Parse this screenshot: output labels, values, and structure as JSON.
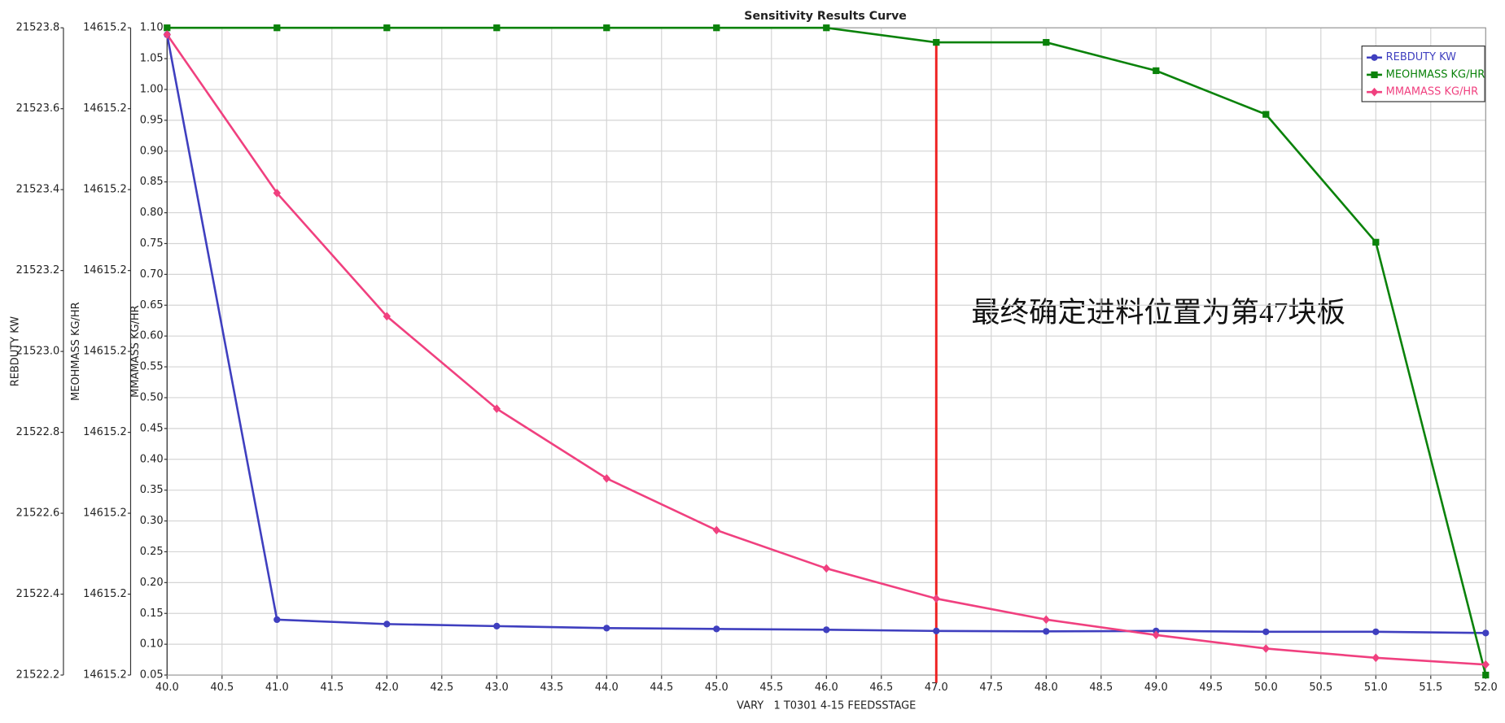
{
  "chart_data": {
    "type": "line",
    "title": "Sensitivity Results Curve",
    "xlabel": "VARY   1 T0301 4-15 FEEDSSTAGE",
    "x": [
      40,
      41,
      42,
      43,
      44,
      45,
      46,
      47,
      48,
      49,
      50,
      51,
      52
    ],
    "xlim": [
      40,
      52
    ],
    "xticks": [
      {
        "value": 40,
        "label": "40.0"
      },
      40.5,
      {
        "value": 41,
        "label": "41.0"
      },
      41.5,
      {
        "value": 42,
        "label": "42.0"
      },
      42.5,
      {
        "value": 43,
        "label": "43.0"
      },
      43.5,
      {
        "value": 44,
        "label": "44.0"
      },
      44.5,
      {
        "value": 45,
        "label": "45.0"
      },
      45.5,
      {
        "value": 46,
        "label": "46.0"
      },
      46.5,
      {
        "value": 47,
        "label": "47.0"
      },
      47.5,
      {
        "value": 48,
        "label": "48.0"
      },
      48.5,
      {
        "value": 49,
        "label": "49.0"
      },
      49.5,
      {
        "value": 50,
        "label": "50.0"
      },
      50.5,
      {
        "value": 51,
        "label": "51.0"
      },
      51.5,
      {
        "value": 52,
        "label": "52.0"
      }
    ],
    "ylabel": "REBDUTY KW",
    "ylim": [
      21522.2,
      21523.8
    ],
    "yticks": [
      21522.2,
      21522.4,
      21522.6,
      21522.8,
      {
        "value": 21523,
        "label": "21523.0"
      },
      21523.2,
      21523.4,
      21523.6,
      21523.8
    ],
    "y2label": "MEOHMASS KG/HR",
    "y2lim": [
      14615.16,
      14615.24
    ],
    "y2ticks": [
      {
        "value": 14615.16,
        "label": "14615.2"
      },
      {
        "value": 14615.17,
        "label": "14615.2"
      },
      {
        "value": 14615.18,
        "label": "14615.2"
      },
      {
        "value": 14615.19,
        "label": "14615.2"
      },
      14615.2,
      {
        "value": 14615.21,
        "label": "14615.2"
      },
      {
        "value": 14615.22,
        "label": "14615.2"
      },
      {
        "value": 14615.23,
        "label": "14615.2"
      },
      {
        "value": 14615.24,
        "label": "14615.2"
      }
    ],
    "y3label": "MMAMASS KG/HR",
    "y3lim": [
      0.05,
      1.1
    ],
    "y3ticks": [
      0.05,
      {
        "value": 0.1,
        "label": "0.10"
      },
      0.15,
      {
        "value": 0.2,
        "label": "0.20"
      },
      0.25,
      {
        "value": 0.3,
        "label": "0.30"
      },
      0.35,
      {
        "value": 0.4,
        "label": "0.40"
      },
      0.45,
      {
        "value": 0.5,
        "label": "0.50"
      },
      0.55,
      {
        "value": 0.6,
        "label": "0.60"
      },
      0.65,
      {
        "value": 0.7,
        "label": "0.70"
      },
      0.75,
      {
        "value": 0.8,
        "label": "0.80"
      },
      0.85,
      {
        "value": 0.9,
        "label": "0.90"
      },
      0.95,
      {
        "value": 1.0,
        "label": "1.00"
      },
      1.05,
      {
        "value": 1.1,
        "label": "1.10"
      }
    ],
    "grid": true,
    "legend": "upper right",
    "series": [
      {
        "name": "REBDUTY KW",
        "color": "#3f3fbf",
        "marker": "circle",
        "axis": "y",
        "values": [
          21523.783,
          21522.337,
          21522.326,
          21522.321,
          21522.316,
          21522.314,
          21522.312,
          21522.309,
          21522.308,
          21522.309,
          21522.307,
          21522.307,
          21522.304
        ]
      },
      {
        "name": "MEOHMASS KG/HR",
        "color": "#0a820a",
        "marker": "square",
        "axis": "y2",
        "values": [
          14615.24,
          14615.24,
          14615.24,
          14615.24,
          14615.24,
          14615.24,
          14615.24,
          14615.2382,
          14615.2382,
          14615.2347,
          14615.2293,
          14615.2135,
          14615.16
        ]
      },
      {
        "name": "MMAMASS KG/HR",
        "color": "#f0407f",
        "marker": "diamond",
        "axis": "y3",
        "values": [
          1.089,
          0.832,
          0.632,
          0.482,
          0.369,
          0.285,
          0.223,
          0.174,
          0.14,
          0.115,
          0.093,
          0.078,
          0.067
        ]
      }
    ],
    "vline": {
      "x": 47,
      "color": "#ee2222"
    },
    "annotation": "最终确定进料位置为第47块板"
  }
}
